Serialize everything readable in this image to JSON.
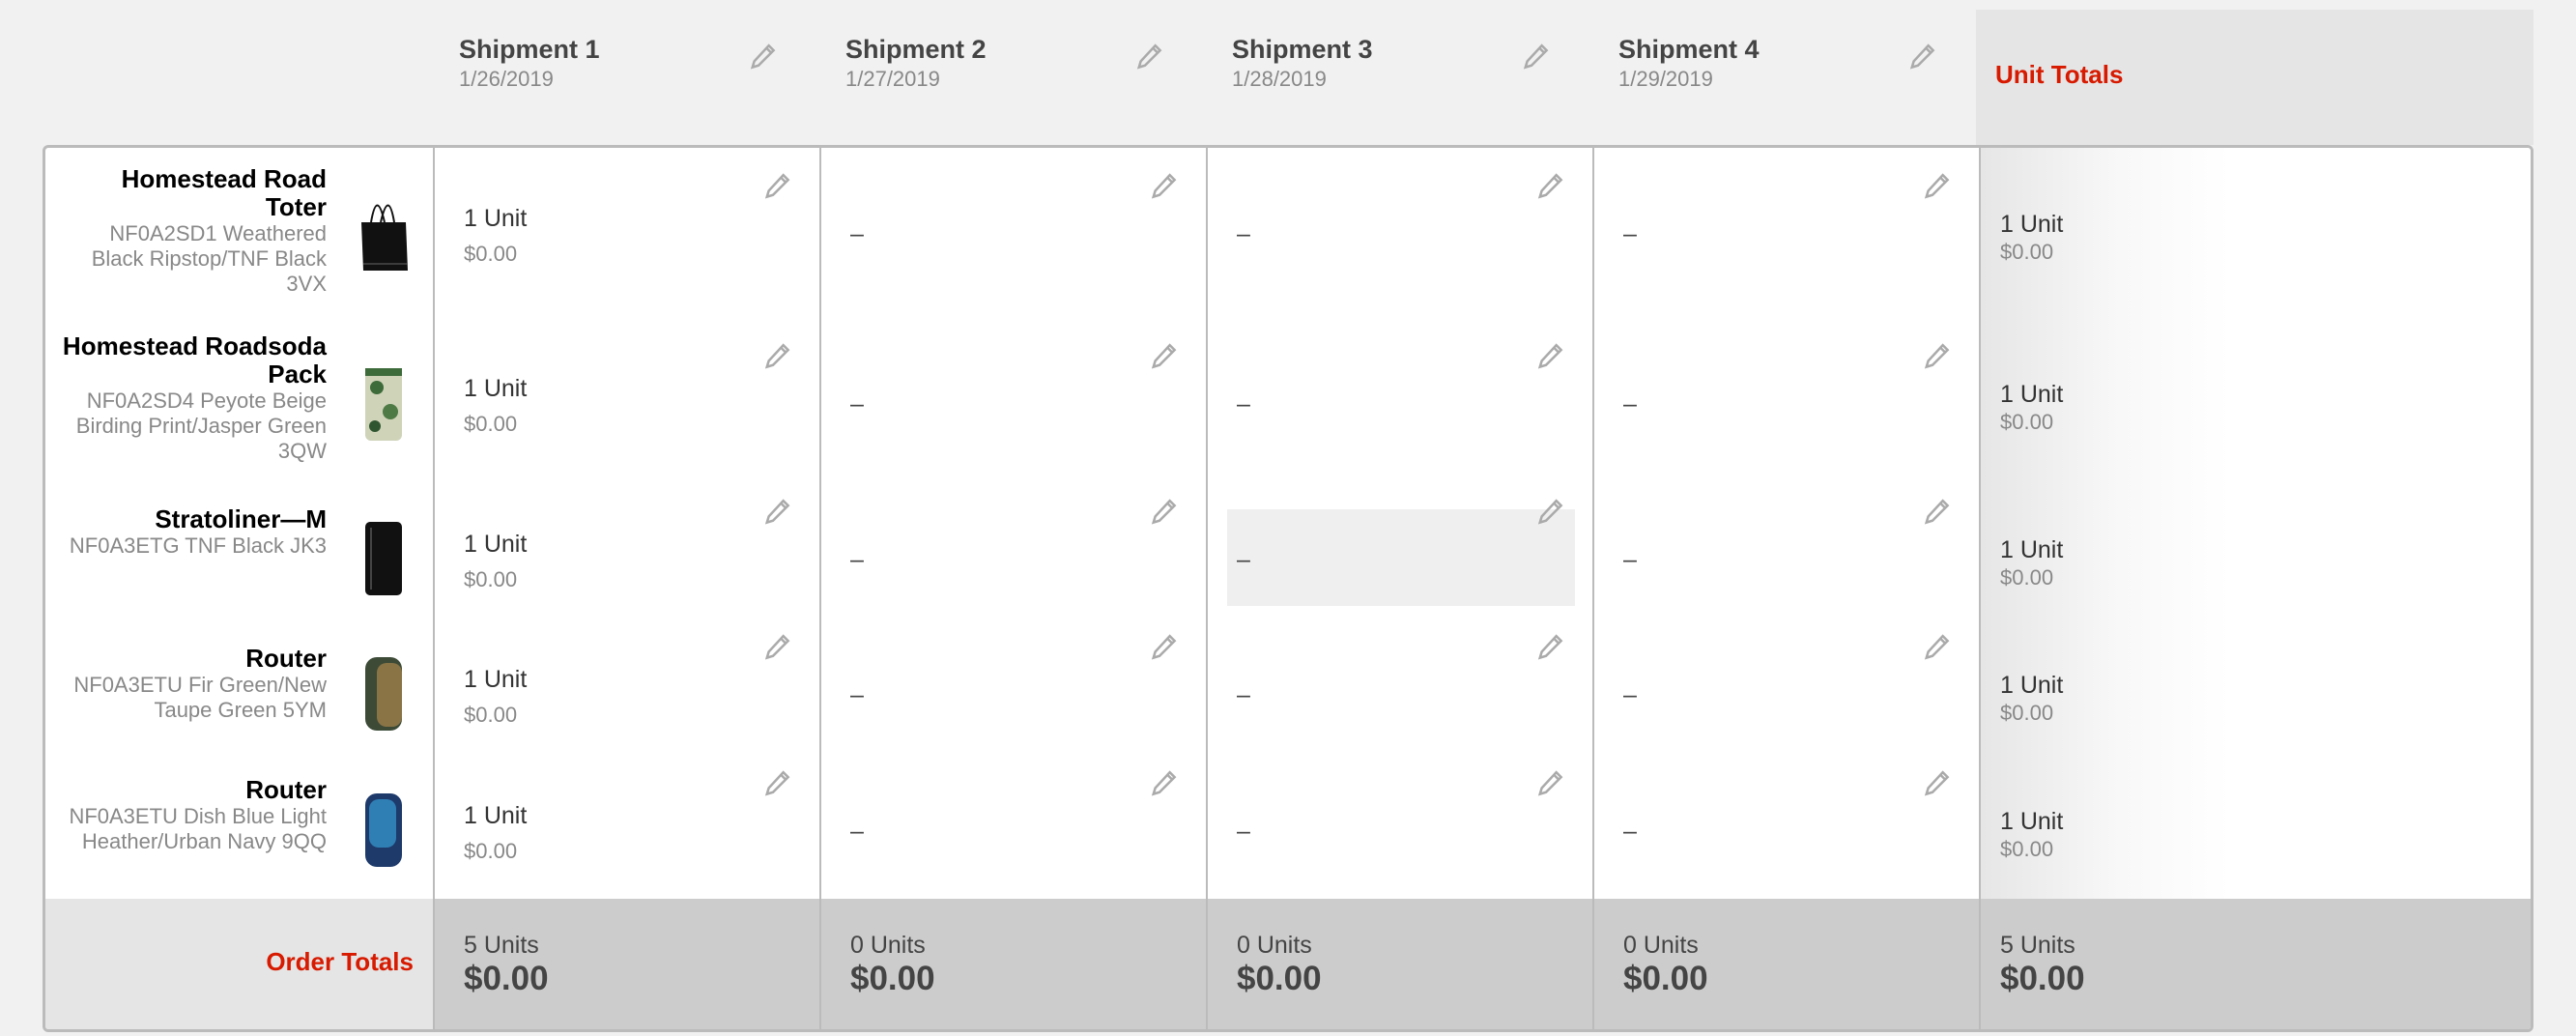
{
  "shipments": [
    {
      "title": "Shipment 1",
      "date": "1/26/2019"
    },
    {
      "title": "Shipment 2",
      "date": "1/27/2019"
    },
    {
      "title": "Shipment 3",
      "date": "1/28/2019"
    },
    {
      "title": "Shipment 4",
      "date": "1/29/2019"
    }
  ],
  "unit_totals_label": "Unit Totals",
  "products": [
    {
      "name": "Homestead Road Toter",
      "desc": "NF0A2SD1 Weathered Black Ripstop/TNF Black 3VX",
      "image": "black-tote-bag",
      "cells": [
        "1 Unit|$0.00",
        "–",
        "–",
        "–"
      ],
      "total_units": "1 Unit",
      "total_price": "$0.00"
    },
    {
      "name": "Homestead Roadsoda Pack",
      "desc": "NF0A2SD4 Peyote Beige Birding Print/Jasper Green 3QW",
      "image": "camo-pack",
      "cells": [
        "1 Unit|$0.00",
        "–",
        "–",
        "–"
      ],
      "total_units": "1 Unit",
      "total_price": "$0.00"
    },
    {
      "name": "Stratoliner—M",
      "desc": "NF0A3ETG TNF Black JK3",
      "image": "black-luggage",
      "cells": [
        "1 Unit|$0.00",
        "–",
        "–",
        "–"
      ],
      "total_units": "1 Unit",
      "total_price": "$0.00"
    },
    {
      "name": "Router",
      "desc": "NF0A3ETU Fir Green/New Taupe Green 5YM",
      "image": "green-backpack",
      "cells": [
        "1 Unit|$0.00",
        "–",
        "–",
        "–"
      ],
      "total_units": "1 Unit",
      "total_price": "$0.00"
    },
    {
      "name": "Router",
      "desc": "NF0A3ETU Dish Blue Light Heather/Urban Navy 9QQ",
      "image": "blue-backpack",
      "cells": [
        "1 Unit|$0.00",
        "–",
        "–",
        "–"
      ],
      "total_units": "1 Unit",
      "total_price": "$0.00"
    }
  ],
  "order_totals": {
    "label": "Order Totals",
    "columns": [
      {
        "units": "5 Units",
        "price": "$0.00"
      },
      {
        "units": "0 Units",
        "price": "$0.00"
      },
      {
        "units": "0 Units",
        "price": "$0.00"
      },
      {
        "units": "0 Units",
        "price": "$0.00"
      },
      {
        "units": "5 Units",
        "price": "$0.00"
      }
    ]
  },
  "highlighted_cell": {
    "row": 2,
    "shipment": 2
  },
  "colors": {
    "accent": "#d71a00",
    "footer": "#cccccc",
    "header_total": "#e5e5e5"
  },
  "icons": {
    "edit": "pencil-icon"
  }
}
